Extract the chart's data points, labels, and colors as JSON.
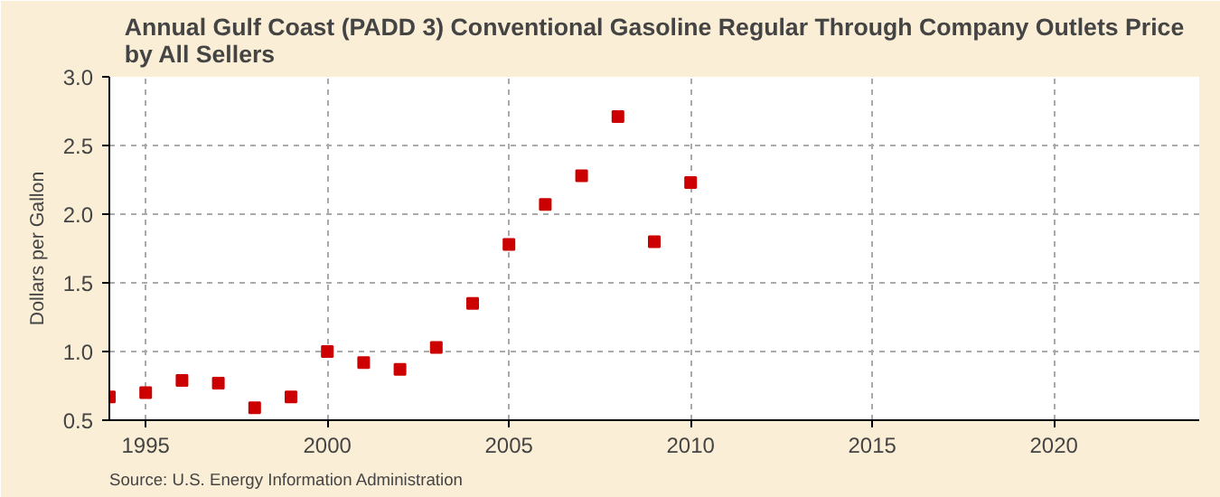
{
  "chart_data": {
    "type": "scatter",
    "title": "Annual Gulf Coast (PADD 3) Conventional Gasoline Regular Through Company Outlets Price by All Sellers",
    "ylabel": "Dollars per Gallon",
    "x": [
      1994,
      1995,
      1996,
      1997,
      1998,
      1999,
      2000,
      2001,
      2002,
      2003,
      2004,
      2005,
      2006,
      2007,
      2008,
      2009,
      2010
    ],
    "values": [
      0.67,
      0.7,
      0.79,
      0.77,
      0.59,
      0.67,
      1.0,
      0.92,
      0.87,
      1.03,
      1.35,
      1.78,
      2.07,
      2.28,
      2.71,
      1.8,
      2.23
    ],
    "color": "#cc0000",
    "marker": "square",
    "xlim": [
      1994,
      2024
    ],
    "xticks": [
      1995,
      2000,
      2005,
      2010,
      2015,
      2020
    ],
    "ylim": [
      0.5,
      3.0
    ],
    "yticks": [
      {
        "value": 0.5,
        "label": "0.5"
      },
      {
        "value": 1.0,
        "label": "1.0"
      },
      {
        "value": 1.5,
        "label": "1.5"
      },
      {
        "value": 2.0,
        "label": "2.0"
      },
      {
        "value": 2.5,
        "label": "2.5"
      },
      {
        "value": 3.0,
        "label": "3.0"
      }
    ],
    "grid": true,
    "annotations": [
      "Source: U.S. Energy Information Administration"
    ]
  }
}
